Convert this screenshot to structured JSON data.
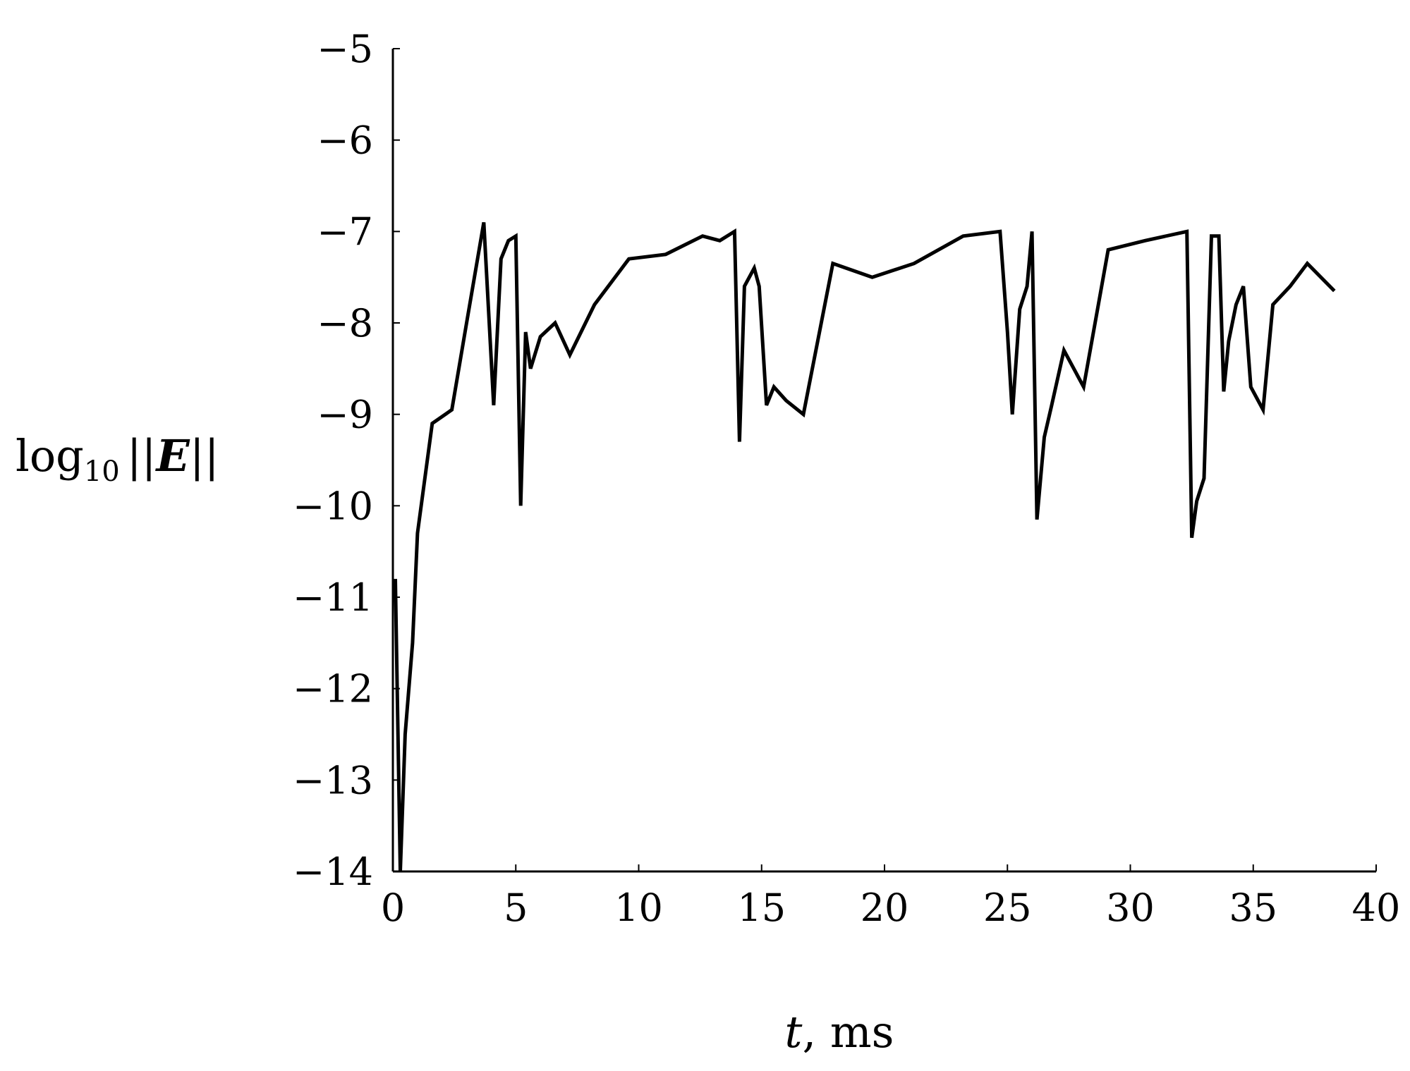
{
  "chart_data": {
    "type": "line",
    "title": "",
    "xlabel": {
      "var": "t",
      "rest": ", ms"
    },
    "ylabel": {
      "fn": "log",
      "sub": "10",
      "left": "||",
      "var": "E",
      "right": "||"
    },
    "xlim": [
      0,
      40
    ],
    "ylim": [
      -14,
      -5
    ],
    "grid": false,
    "legend": "none",
    "line_color": "#000000",
    "xticks": [
      0,
      5,
      10,
      15,
      20,
      25,
      30,
      35,
      40
    ],
    "yticks": [
      -5,
      -6,
      -7,
      -8,
      -9,
      -10,
      -11,
      -12,
      -13,
      -14
    ],
    "xtick_labels": [
      "0",
      "5",
      "10",
      "15",
      "20",
      "25",
      "30",
      "35",
      "40"
    ],
    "ytick_labels": [
      "−5",
      "−6",
      "−7",
      "−8",
      "−9",
      "−10",
      "−11",
      "−12",
      "−13",
      "−14"
    ],
    "series": [
      {
        "x": [
          0.1,
          0.3,
          0.5,
          0.8,
          1.0,
          1.6,
          2.4,
          3.0,
          3.7,
          4.1,
          4.4,
          4.7,
          5.0,
          5.2,
          5.4,
          5.6,
          6.0,
          6.6,
          7.2,
          8.2,
          9.6,
          11.1,
          12.6,
          13.3,
          13.9,
          14.1,
          14.3,
          14.7,
          14.9,
          15.2,
          15.5,
          16.0,
          16.7,
          17.9,
          19.5,
          21.2,
          23.2,
          24.7,
          25.0,
          25.2,
          25.5,
          25.8,
          26.0,
          26.2,
          26.5,
          26.8,
          27.3,
          28.1,
          29.1,
          30.6,
          32.3,
          32.5,
          32.7,
          33.0,
          33.3,
          33.6,
          33.8,
          34.0,
          34.3,
          34.6,
          34.9,
          35.4,
          35.8,
          36.5,
          37.2,
          38.3
        ],
        "y": [
          -10.8,
          -14.0,
          -12.5,
          -11.5,
          -10.3,
          -9.1,
          -8.95,
          -8.0,
          -6.9,
          -8.9,
          -7.3,
          -7.1,
          -7.05,
          -10.0,
          -8.1,
          -8.5,
          -8.15,
          -8.0,
          -8.35,
          -7.8,
          -7.3,
          -7.25,
          -7.05,
          -7.1,
          -7.0,
          -9.3,
          -7.6,
          -7.4,
          -7.6,
          -8.9,
          -8.7,
          -8.85,
          -9.0,
          -7.35,
          -7.5,
          -7.35,
          -7.05,
          -7.0,
          -8.1,
          -9.0,
          -7.85,
          -7.6,
          -7.0,
          -10.15,
          -9.25,
          -8.9,
          -8.3,
          -8.7,
          -7.2,
          -7.1,
          -7.0,
          -10.35,
          -9.95,
          -9.7,
          -7.05,
          -7.05,
          -8.75,
          -8.2,
          -7.8,
          -7.6,
          -8.7,
          -8.95,
          -7.8,
          -7.6,
          -7.35,
          -7.65
        ]
      }
    ]
  }
}
